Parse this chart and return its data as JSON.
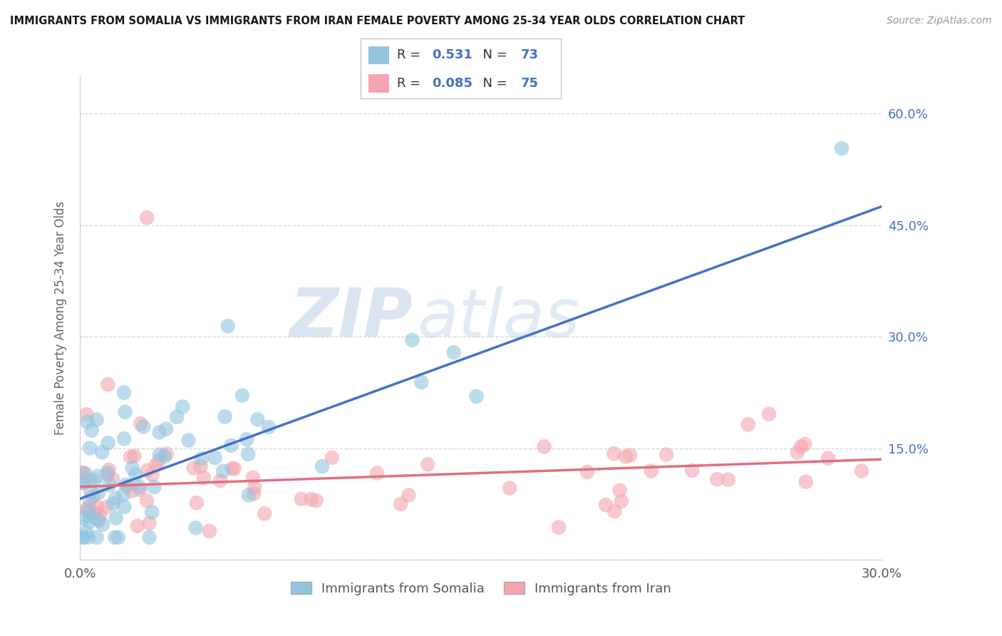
{
  "title": "IMMIGRANTS FROM SOMALIA VS IMMIGRANTS FROM IRAN FEMALE POVERTY AMONG 25-34 YEAR OLDS CORRELATION CHART",
  "source": "Source: ZipAtlas.com",
  "ylabel": "Female Poverty Among 25-34 Year Olds",
  "x_min": 0.0,
  "x_max": 0.3,
  "y_min": 0.0,
  "y_max": 0.65,
  "somalia_R": 0.531,
  "somalia_N": 73,
  "iran_R": 0.085,
  "iran_N": 75,
  "somalia_color": "#92c5de",
  "iran_color": "#f4a6b0",
  "somalia_line_color": "#4472c4",
  "iran_line_color": "#e07080",
  "right_tick_color": "#4472c4",
  "background_color": "#ffffff",
  "grid_color": "#cccccc",
  "watermark_zip": "ZIP",
  "watermark_atlas": "atlas",
  "legend_somalia": "Immigrants from Somalia",
  "legend_iran": "Immigrants from Iran"
}
